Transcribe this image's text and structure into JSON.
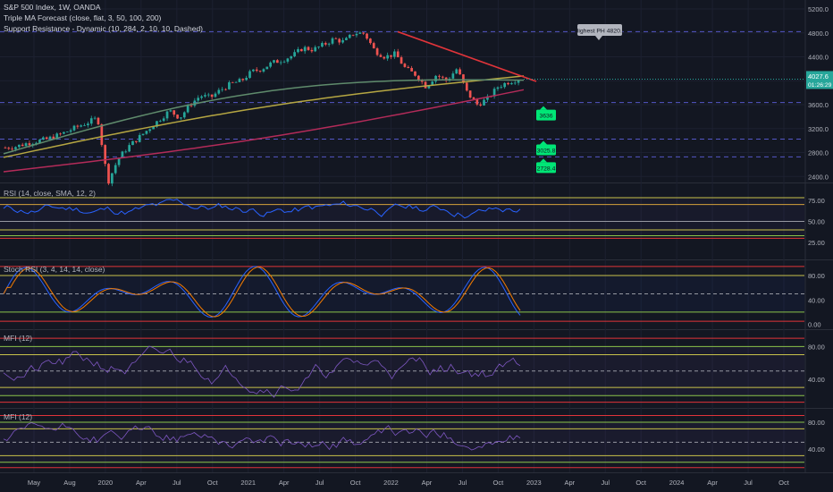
{
  "header": {
    "symbol_line": "S&P 500 Index, 1W, OANDA",
    "indicator_1": "Triple MA Forecast (close, flat, 3, 50, 100, 200)",
    "indicator_2": "Support Resistance - Dynamic (10, 284, 2, 10, 10, Dashed)"
  },
  "price_badge": {
    "price": "4027.6",
    "countdown": "01:26:29",
    "color": "#26a69a"
  },
  "callout": {
    "text": "Highest PH 4820.2"
  },
  "support_labels": [
    {
      "text": "3636",
      "value": 3636
    },
    {
      "text": "3025.8",
      "value": 3025.8
    },
    {
      "text": "2728.4",
      "value": 2728.4
    }
  ],
  "panes": {
    "rsi": {
      "label": "RSI (14, close, SMA, 12, 2)",
      "ticks": [
        "75.00",
        "50.00",
        "25.00"
      ]
    },
    "stoch": {
      "label": "Stoch RSI (3, 4, 14, 14, close)",
      "ticks": [
        "80.00",
        "40.00",
        "0.00"
      ]
    },
    "mfi1": {
      "label": "MFI (12)",
      "ticks": [
        "80.00",
        "40.00"
      ]
    },
    "mfi2": {
      "label": "MFI (12)",
      "ticks": [
        "80.00",
        "40.00"
      ]
    }
  },
  "chart_data": {
    "type": "candlestick",
    "price_ticks": [
      "5200.0",
      "4800.0",
      "4400.0",
      "4000.0",
      "3600.0",
      "3200.0",
      "2800.0",
      "2400.0"
    ],
    "x_tick_labels": [
      "May",
      "Aug",
      "2020",
      "Apr",
      "Jul",
      "Oct",
      "2021",
      "Apr",
      "Jul",
      "Oct",
      "2022",
      "Apr",
      "Jul",
      "Oct",
      "2023",
      "Apr",
      "Jul",
      "Oct",
      "2024",
      "Apr",
      "Jul",
      "Oct"
    ],
    "close_path": [
      2880,
      2900,
      2950,
      2990,
      3020,
      3080,
      3150,
      3230,
      3300,
      3380,
      2300,
      2700,
      2900,
      3050,
      3200,
      3350,
      3500,
      3380,
      3600,
      3750,
      3720,
      3850,
      3950,
      4000,
      4150,
      4200,
      4300,
      4350,
      4420,
      4550,
      4520,
      4600,
      4700,
      4650,
      4800,
      4790,
      4500,
      4400,
      4450,
      4200,
      4100,
      3900,
      4100,
      4000,
      4200,
      3800,
      3600,
      3700,
      3900,
      3980,
      4027
    ],
    "ma_50_start": 2780,
    "ma_50_end": 4010,
    "ma_100_start": 2720,
    "ma_100_end": 4080,
    "ma_200_start": 2480,
    "ma_200_end": 3850,
    "highest_ph": 4820.2,
    "resistance_line": {
      "from": 4820.2,
      "to": 3990
    },
    "colors": {
      "up": "#26a69a",
      "down": "#ef5350",
      "ma50": "#5f8b6c",
      "ma100": "#b5a642",
      "ma200": "#b32b59",
      "resistance": "#e0343a",
      "support": "#5457c6",
      "rsi": "#2962ff",
      "stoch_k": "#2962ff",
      "stoch_d": "#f57c00",
      "mfi": "#7e57c2"
    },
    "rsi_levels": [
      78,
      70,
      50,
      40,
      33,
      30
    ],
    "stoch_levels": [
      80,
      50,
      20
    ],
    "mfi_levels": [
      80,
      70,
      50,
      30,
      20
    ]
  }
}
